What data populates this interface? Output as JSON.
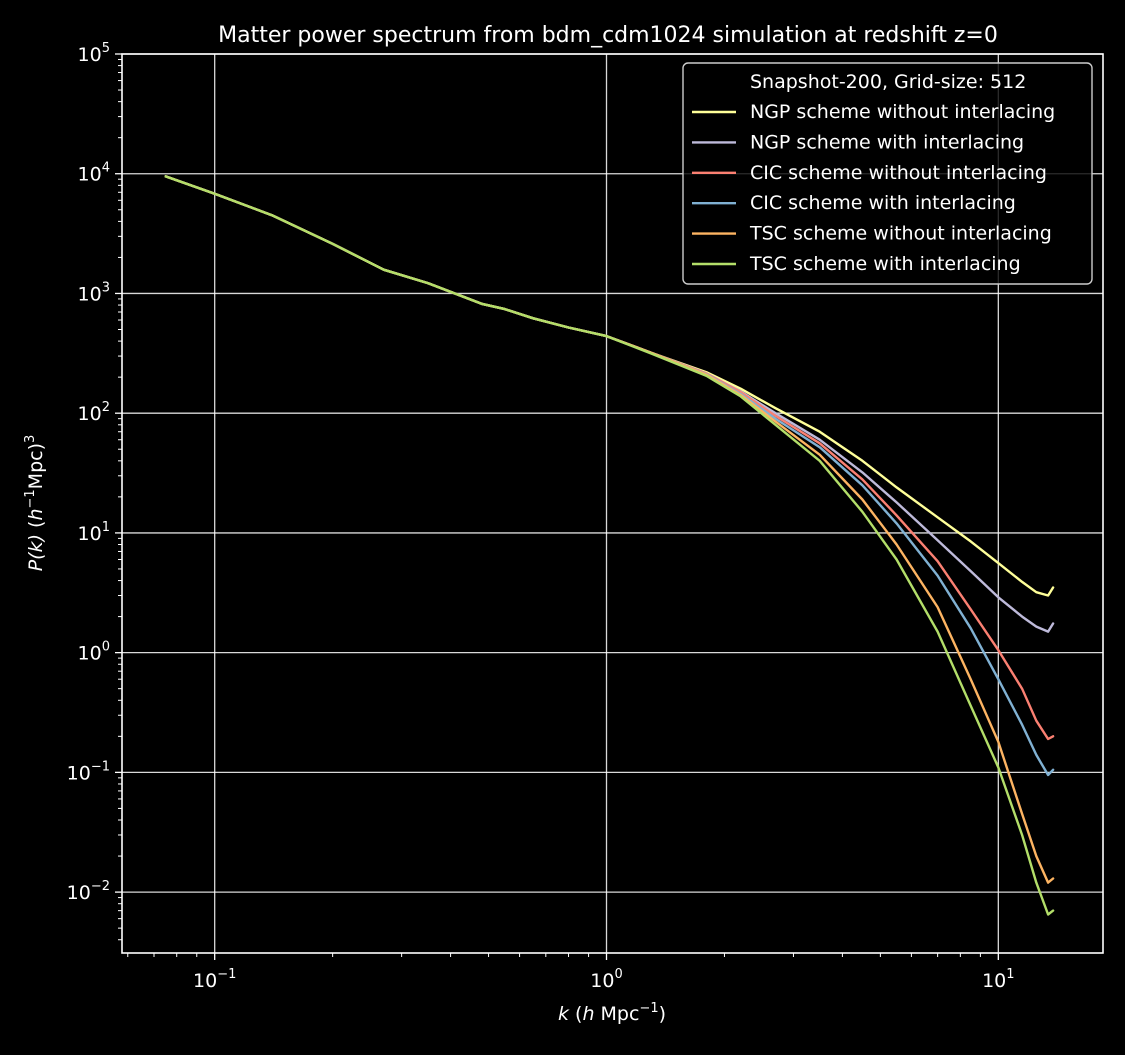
{
  "chart_data": {
    "type": "line",
    "title": "Matter power spectrum from bdm_cdm1024 simulation at redshift z=0",
    "xlabel": {
      "k": "k",
      "open": "  (",
      "h": "h",
      "mpc": " Mpc",
      "sup": "−1",
      "close": ")"
    },
    "ylabel": {
      "pk": "P(k)",
      "open": "  (",
      "h": "h",
      "sup": "−1",
      "mpc": "Mpc)",
      "cube": "3"
    },
    "x_scale": "log",
    "y_scale": "log",
    "xlim": [
      0.058,
      18.5
    ],
    "ylim": [
      0.0031,
      100000
    ],
    "x_ticks": [
      {
        "value": 0.1,
        "base": "10",
        "exp": "−1"
      },
      {
        "value": 1,
        "base": "10",
        "exp": "0"
      },
      {
        "value": 10,
        "base": "10",
        "exp": "1"
      }
    ],
    "y_ticks": [
      {
        "value": 0.01,
        "base": "10",
        "exp": "−2"
      },
      {
        "value": 0.1,
        "base": "10",
        "exp": "−1"
      },
      {
        "value": 1,
        "base": "10",
        "exp": "0"
      },
      {
        "value": 10,
        "base": "10",
        "exp": "1"
      },
      {
        "value": 100,
        "base": "10",
        "exp": "2"
      },
      {
        "value": 1000,
        "base": "10",
        "exp": "3"
      },
      {
        "value": 10000,
        "base": "10",
        "exp": "4"
      },
      {
        "value": 100000,
        "base": "10",
        "exp": "5"
      }
    ],
    "grid": true,
    "legend": {
      "position": "top-right",
      "title": "Snapshot-200, Grid-size: 512"
    },
    "colors": {
      "background": "#000000",
      "foreground": "#ffffff"
    },
    "series": [
      {
        "name": "NGP scheme without interlacing",
        "color": "#ffff99",
        "x": [
          0.075,
          0.1,
          0.14,
          0.2,
          0.27,
          0.35,
          0.48,
          0.55,
          0.65,
          0.8,
          1.0,
          1.3,
          1.8,
          2.2,
          2.7,
          3.5,
          4.5,
          5.5,
          7.0,
          8.5,
          10.0,
          11.5,
          12.5,
          13.4,
          13.8
        ],
        "y": [
          9500,
          6800,
          4500,
          2600,
          1580,
          1220,
          820,
          740,
          620,
          520,
          440,
          320,
          220,
          160,
          110,
          70,
          40,
          24,
          13.5,
          8.5,
          5.6,
          3.9,
          3.2,
          3.0,
          3.5
        ]
      },
      {
        "name": "NGP scheme with interlacing",
        "color": "#bebada",
        "x": [
          0.075,
          0.1,
          0.14,
          0.2,
          0.27,
          0.35,
          0.48,
          0.55,
          0.65,
          0.8,
          1.0,
          1.3,
          1.8,
          2.2,
          2.7,
          3.5,
          4.5,
          5.5,
          7.0,
          8.5,
          10.0,
          11.5,
          12.5,
          13.4,
          13.8
        ],
        "y": [
          9500,
          6800,
          4500,
          2600,
          1580,
          1220,
          820,
          740,
          620,
          520,
          440,
          320,
          215,
          152,
          100,
          60,
          32,
          18,
          8.7,
          4.8,
          2.9,
          2.0,
          1.65,
          1.5,
          1.75
        ]
      },
      {
        "name": "CIC scheme without interlacing",
        "color": "#fb8072",
        "x": [
          0.075,
          0.1,
          0.14,
          0.2,
          0.27,
          0.35,
          0.48,
          0.55,
          0.65,
          0.8,
          1.0,
          1.3,
          1.8,
          2.2,
          2.7,
          3.5,
          4.5,
          5.5,
          7.0,
          8.5,
          10.0,
          11.5,
          12.5,
          13.4,
          13.8
        ],
        "y": [
          9500,
          6800,
          4500,
          2600,
          1580,
          1220,
          820,
          740,
          620,
          520,
          440,
          320,
          215,
          150,
          95,
          56,
          28,
          14,
          5.8,
          2.3,
          1.05,
          0.5,
          0.27,
          0.19,
          0.2
        ]
      },
      {
        "name": "CIC scheme with interlacing",
        "color": "#80b1d3",
        "x": [
          0.075,
          0.1,
          0.14,
          0.2,
          0.27,
          0.35,
          0.48,
          0.55,
          0.65,
          0.8,
          1.0,
          1.3,
          1.8,
          2.2,
          2.7,
          3.5,
          4.5,
          5.5,
          7.0,
          8.5,
          10.0,
          11.5,
          12.5,
          13.4,
          13.8
        ],
        "y": [
          9500,
          6800,
          4500,
          2600,
          1580,
          1220,
          820,
          740,
          620,
          520,
          440,
          320,
          212,
          145,
          90,
          52,
          25,
          12,
          4.4,
          1.6,
          0.6,
          0.25,
          0.14,
          0.095,
          0.105
        ]
      },
      {
        "name": "TSC scheme without interlacing",
        "color": "#fdb462",
        "x": [
          0.075,
          0.1,
          0.14,
          0.2,
          0.27,
          0.35,
          0.48,
          0.55,
          0.65,
          0.8,
          1.0,
          1.3,
          1.8,
          2.2,
          2.7,
          3.5,
          4.5,
          5.5,
          7.0,
          8.5,
          10.0,
          11.5,
          12.5,
          13.4,
          13.8
        ],
        "y": [
          9500,
          6800,
          4500,
          2600,
          1580,
          1220,
          820,
          740,
          620,
          520,
          440,
          320,
          210,
          142,
          85,
          45,
          19,
          8,
          2.4,
          0.6,
          0.18,
          0.045,
          0.02,
          0.012,
          0.013
        ]
      },
      {
        "name": "TSC scheme with interlacing",
        "color": "#b3de69",
        "x": [
          0.075,
          0.1,
          0.14,
          0.2,
          0.27,
          0.35,
          0.48,
          0.55,
          0.65,
          0.8,
          1.0,
          1.3,
          1.8,
          2.2,
          2.7,
          3.5,
          4.5,
          5.5,
          7.0,
          8.5,
          10.0,
          11.5,
          12.5,
          13.4,
          13.8
        ],
        "y": [
          9500,
          6800,
          4500,
          2600,
          1580,
          1220,
          820,
          740,
          620,
          520,
          440,
          315,
          205,
          138,
          80,
          40,
          15,
          6.0,
          1.5,
          0.36,
          0.11,
          0.03,
          0.012,
          0.0065,
          0.007
        ]
      }
    ]
  }
}
